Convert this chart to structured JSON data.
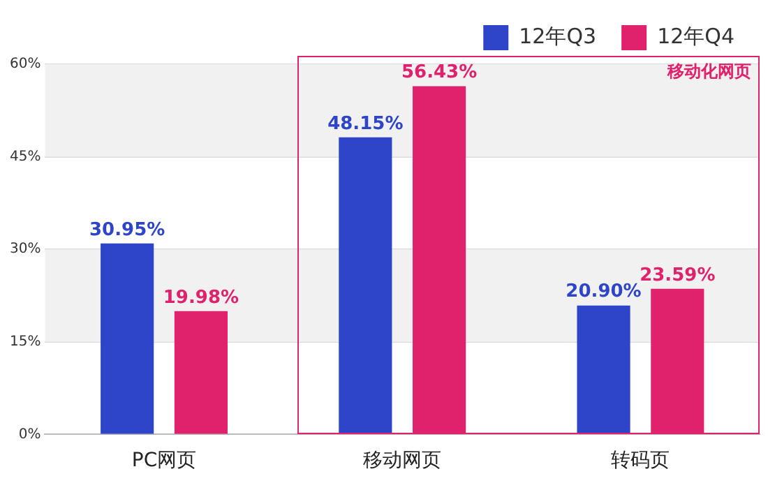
{
  "chart_data": {
    "type": "bar",
    "categories": [
      "PC网页",
      "移动网页",
      "转码页"
    ],
    "series": [
      {
        "name": "12年Q3",
        "color": "#2f45c9",
        "values": [
          30.95,
          48.15,
          20.9
        ],
        "value_labels": [
          "30.95%",
          "48.15%",
          "20.90%"
        ]
      },
      {
        "name": "12年Q4",
        "color": "#e0216b",
        "values": [
          19.98,
          56.43,
          23.59
        ],
        "value_labels": [
          "19.98%",
          "56.43%",
          "23.59%"
        ]
      }
    ],
    "ylim": [
      0,
      60
    ],
    "yticks": [
      {
        "value": 0,
        "label": "0%"
      },
      {
        "value": 15,
        "label": "15%"
      },
      {
        "value": 30,
        "label": "30%"
      },
      {
        "value": 45,
        "label": "45%"
      },
      {
        "value": 60,
        "label": "60%"
      }
    ],
    "grid": "y",
    "legend": "top right",
    "annotations": [
      "移动化网页"
    ]
  }
}
